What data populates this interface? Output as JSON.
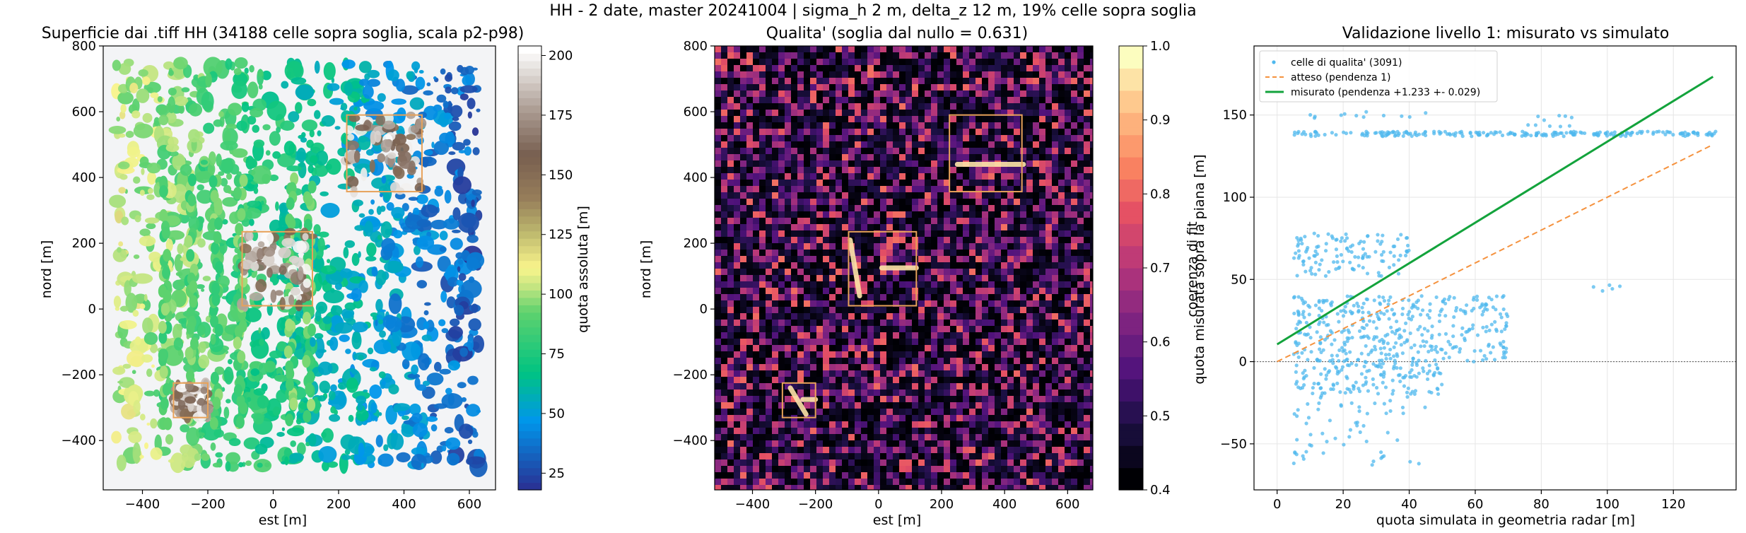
{
  "suptitle": "HH - 2 date, master 20241004 | sigma_h 2 m, delta_z 12 m, 19% celle sopra soglia",
  "colors": {
    "axis_bg_left": "#f3f4f6",
    "box": "#e8a25a",
    "scatter": "#4fb8ee",
    "expected_line": "#f5923e",
    "fit_line": "#13a33c",
    "zero_line": "#555555"
  },
  "chart_data": [
    {
      "type": "heatmap",
      "title": "Superficie dai .tiff HH (34188 celle sopra soglia, scala p2-p98)",
      "xlabel": "est [m]",
      "ylabel": "nord [m]",
      "xlim": [
        -520,
        680
      ],
      "ylim": [
        -550,
        800
      ],
      "xticks": [
        -400,
        -200,
        0,
        200,
        400,
        600
      ],
      "yticks": [
        -400,
        -200,
        0,
        200,
        400,
        600,
        800
      ],
      "colormap": "terrain",
      "colorbar": {
        "label": "quota assoluta [m]",
        "range": [
          18,
          204
        ],
        "ticks": [
          25,
          50,
          75,
          100,
          125,
          150,
          175,
          200
        ]
      },
      "boxes": [
        {
          "x0": 225,
          "x1": 455,
          "y0": 357,
          "y1": 590
        },
        {
          "x0": -95,
          "x1": 120,
          "y0": 10,
          "y1": 235
        },
        {
          "x0": -305,
          "x1": -200,
          "y0": -330,
          "y1": -225
        }
      ]
    },
    {
      "type": "heatmap",
      "title": "Qualita' (soglia dal nullo = 0.631)",
      "xlabel": "est [m]",
      "ylabel": "nord [m]",
      "xlim": [
        -520,
        680
      ],
      "ylim": [
        -550,
        800
      ],
      "xticks": [
        -400,
        -200,
        0,
        200,
        400,
        600
      ],
      "yticks": [
        -400,
        -200,
        0,
        200,
        400,
        600,
        800
      ],
      "colormap": "magma",
      "colorbar": {
        "label": "coerenza di fit",
        "range": [
          0.4,
          1.0
        ],
        "ticks": [
          0.4,
          0.5,
          0.6,
          0.7,
          0.8,
          0.9,
          1.0
        ]
      },
      "boxes": [
        {
          "x0": 225,
          "x1": 455,
          "y0": 357,
          "y1": 590
        },
        {
          "x0": -95,
          "x1": 120,
          "y0": 10,
          "y1": 235
        },
        {
          "x0": -305,
          "x1": -200,
          "y0": -330,
          "y1": -225
        }
      ]
    },
    {
      "type": "scatter",
      "title": "Validazione livello 1: misurato vs simulato",
      "xlabel": "quota simulata in geometria radar [m]",
      "ylabel": "quota misurata sopra la piana [m]",
      "xlim": [
        -7,
        139
      ],
      "ylim": [
        -78,
        192
      ],
      "xticks": [
        0,
        20,
        40,
        60,
        80,
        100,
        120
      ],
      "yticks": [
        -50,
        0,
        50,
        100,
        150
      ],
      "grid": true,
      "legend_position": "top-left",
      "series": [
        {
          "name": "celle di qualita' (3091)",
          "kind": "points",
          "clusters": [
            {
              "x": [
                5,
                133
              ],
              "y": [
                137,
                140
              ],
              "n": 220
            },
            {
              "x": [
                8,
                45
              ],
              "y": [
                148,
                152
              ],
              "n": 12
            },
            {
              "x": [
                75,
                90
              ],
              "y": [
                143,
                150
              ],
              "n": 10
            },
            {
              "x": [
                5,
                40
              ],
              "y": [
                52,
                78
              ],
              "n": 120
            },
            {
              "x": [
                5,
                70
              ],
              "y": [
                0,
                40
              ],
              "n": 380
            },
            {
              "x": [
                5,
                50
              ],
              "y": [
                -20,
                0
              ],
              "n": 140
            },
            {
              "x": [
                5,
                45
              ],
              "y": [
                -63,
                -20
              ],
              "n": 60
            },
            {
              "x": [
                95,
                105
              ],
              "y": [
                43,
                58
              ],
              "n": 5
            }
          ]
        },
        {
          "name": "atteso (pendenza 1)",
          "kind": "line",
          "x": [
            0,
            132
          ],
          "y": [
            0,
            132
          ]
        },
        {
          "name": "misurato (pendenza +1.233 +- 0.029)",
          "kind": "line",
          "x": [
            0,
            132
          ],
          "y": [
            10.5,
            173.3
          ]
        }
      ]
    }
  ]
}
